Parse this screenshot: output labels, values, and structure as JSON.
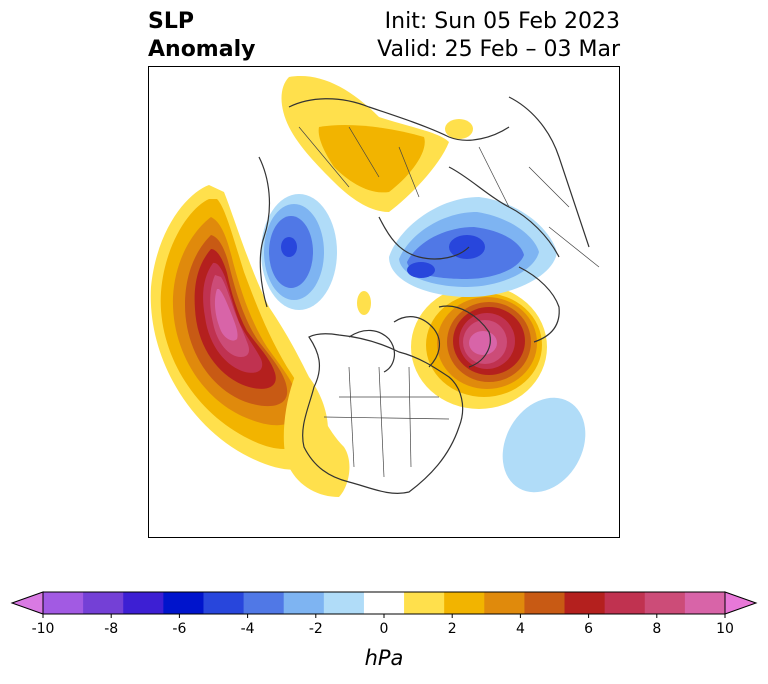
{
  "title": {
    "variable_line1": "SLP",
    "variable_line2": "Anomaly",
    "init": "Init: Sun 05 Feb 2023",
    "valid": "Valid: 25 Feb – 03 Mar"
  },
  "colorbar": {
    "unit": "hPa",
    "tick_labels": [
      "-10",
      "-8",
      "-6",
      "-4",
      "-2",
      "0",
      "2",
      "4",
      "6",
      "8",
      "10"
    ],
    "colors": [
      "#d97ae3",
      "#a25ae3",
      "#7440d6",
      "#3d1fd3",
      "#0014cc",
      "#2846dc",
      "#5078e6",
      "#7eb4f2",
      "#b0dcf8",
      "#ffffff",
      "#ffe04c",
      "#f2b400",
      "#e08a0c",
      "#c85a14",
      "#b4201e",
      "#c03250",
      "#cc4c78",
      "#d864a8",
      "#e878d8"
    ]
  },
  "map": {
    "description_icon": "north-polar-stereographic-map"
  }
}
